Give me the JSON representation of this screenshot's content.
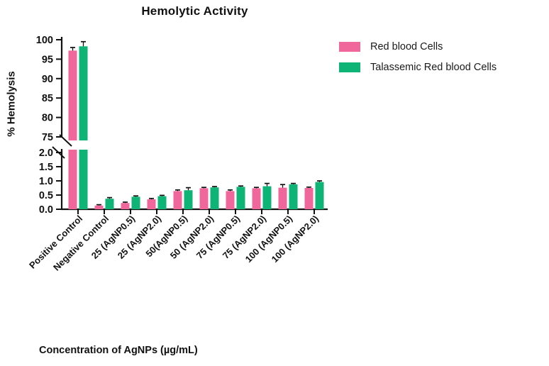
{
  "chart_data": {
    "type": "bar",
    "title": "Hemolytic Activity",
    "xlabel": "Concentration of AgNPs (µg/mL)",
    "ylabel": "% Hemolysis",
    "categories": [
      "Positive Control",
      "Negative Control",
      "25 (AgNP0.5)",
      "25 (AgNP2.0)",
      "50(AgNP0.5)",
      "50 (AgNP2.0)",
      "75 (AgNP0.5)",
      "75 (AgNP2.0)",
      "100 (AgNP0.5)",
      "100 (AgNP2.0)"
    ],
    "series": [
      {
        "name": "Red blood Cells",
        "color": "#F0689B",
        "values": [
          97.2,
          0.13,
          0.22,
          0.35,
          0.64,
          0.74,
          0.64,
          0.74,
          0.76,
          0.75
        ],
        "errors": [
          0.8,
          0.03,
          0.03,
          0.03,
          0.04,
          0.03,
          0.04,
          0.03,
          0.11,
          0.03
        ]
      },
      {
        "name": "Talassemic Red blood Cells",
        "color": "#0EB476",
        "values": [
          98.3,
          0.37,
          0.44,
          0.46,
          0.67,
          0.77,
          0.79,
          0.81,
          0.88,
          0.96
        ],
        "errors": [
          1.2,
          0.04,
          0.03,
          0.03,
          0.09,
          0.03,
          0.03,
          0.1,
          0.03,
          0.04
        ]
      }
    ],
    "axis_break": {
      "upper_range": [
        75,
        100
      ],
      "lower_range": [
        0.0,
        2.0
      ],
      "upper_ticks": [
        "100",
        "95",
        "90",
        "85",
        "80",
        "75"
      ],
      "lower_ticks": [
        "2.0",
        "1.5",
        "1.0",
        "0.5",
        "0.0"
      ]
    },
    "legend_position": "right",
    "grid": false,
    "bar_orientation": "vertical"
  },
  "colors": {
    "axis": "#111111",
    "background": "#FFFFFF"
  }
}
